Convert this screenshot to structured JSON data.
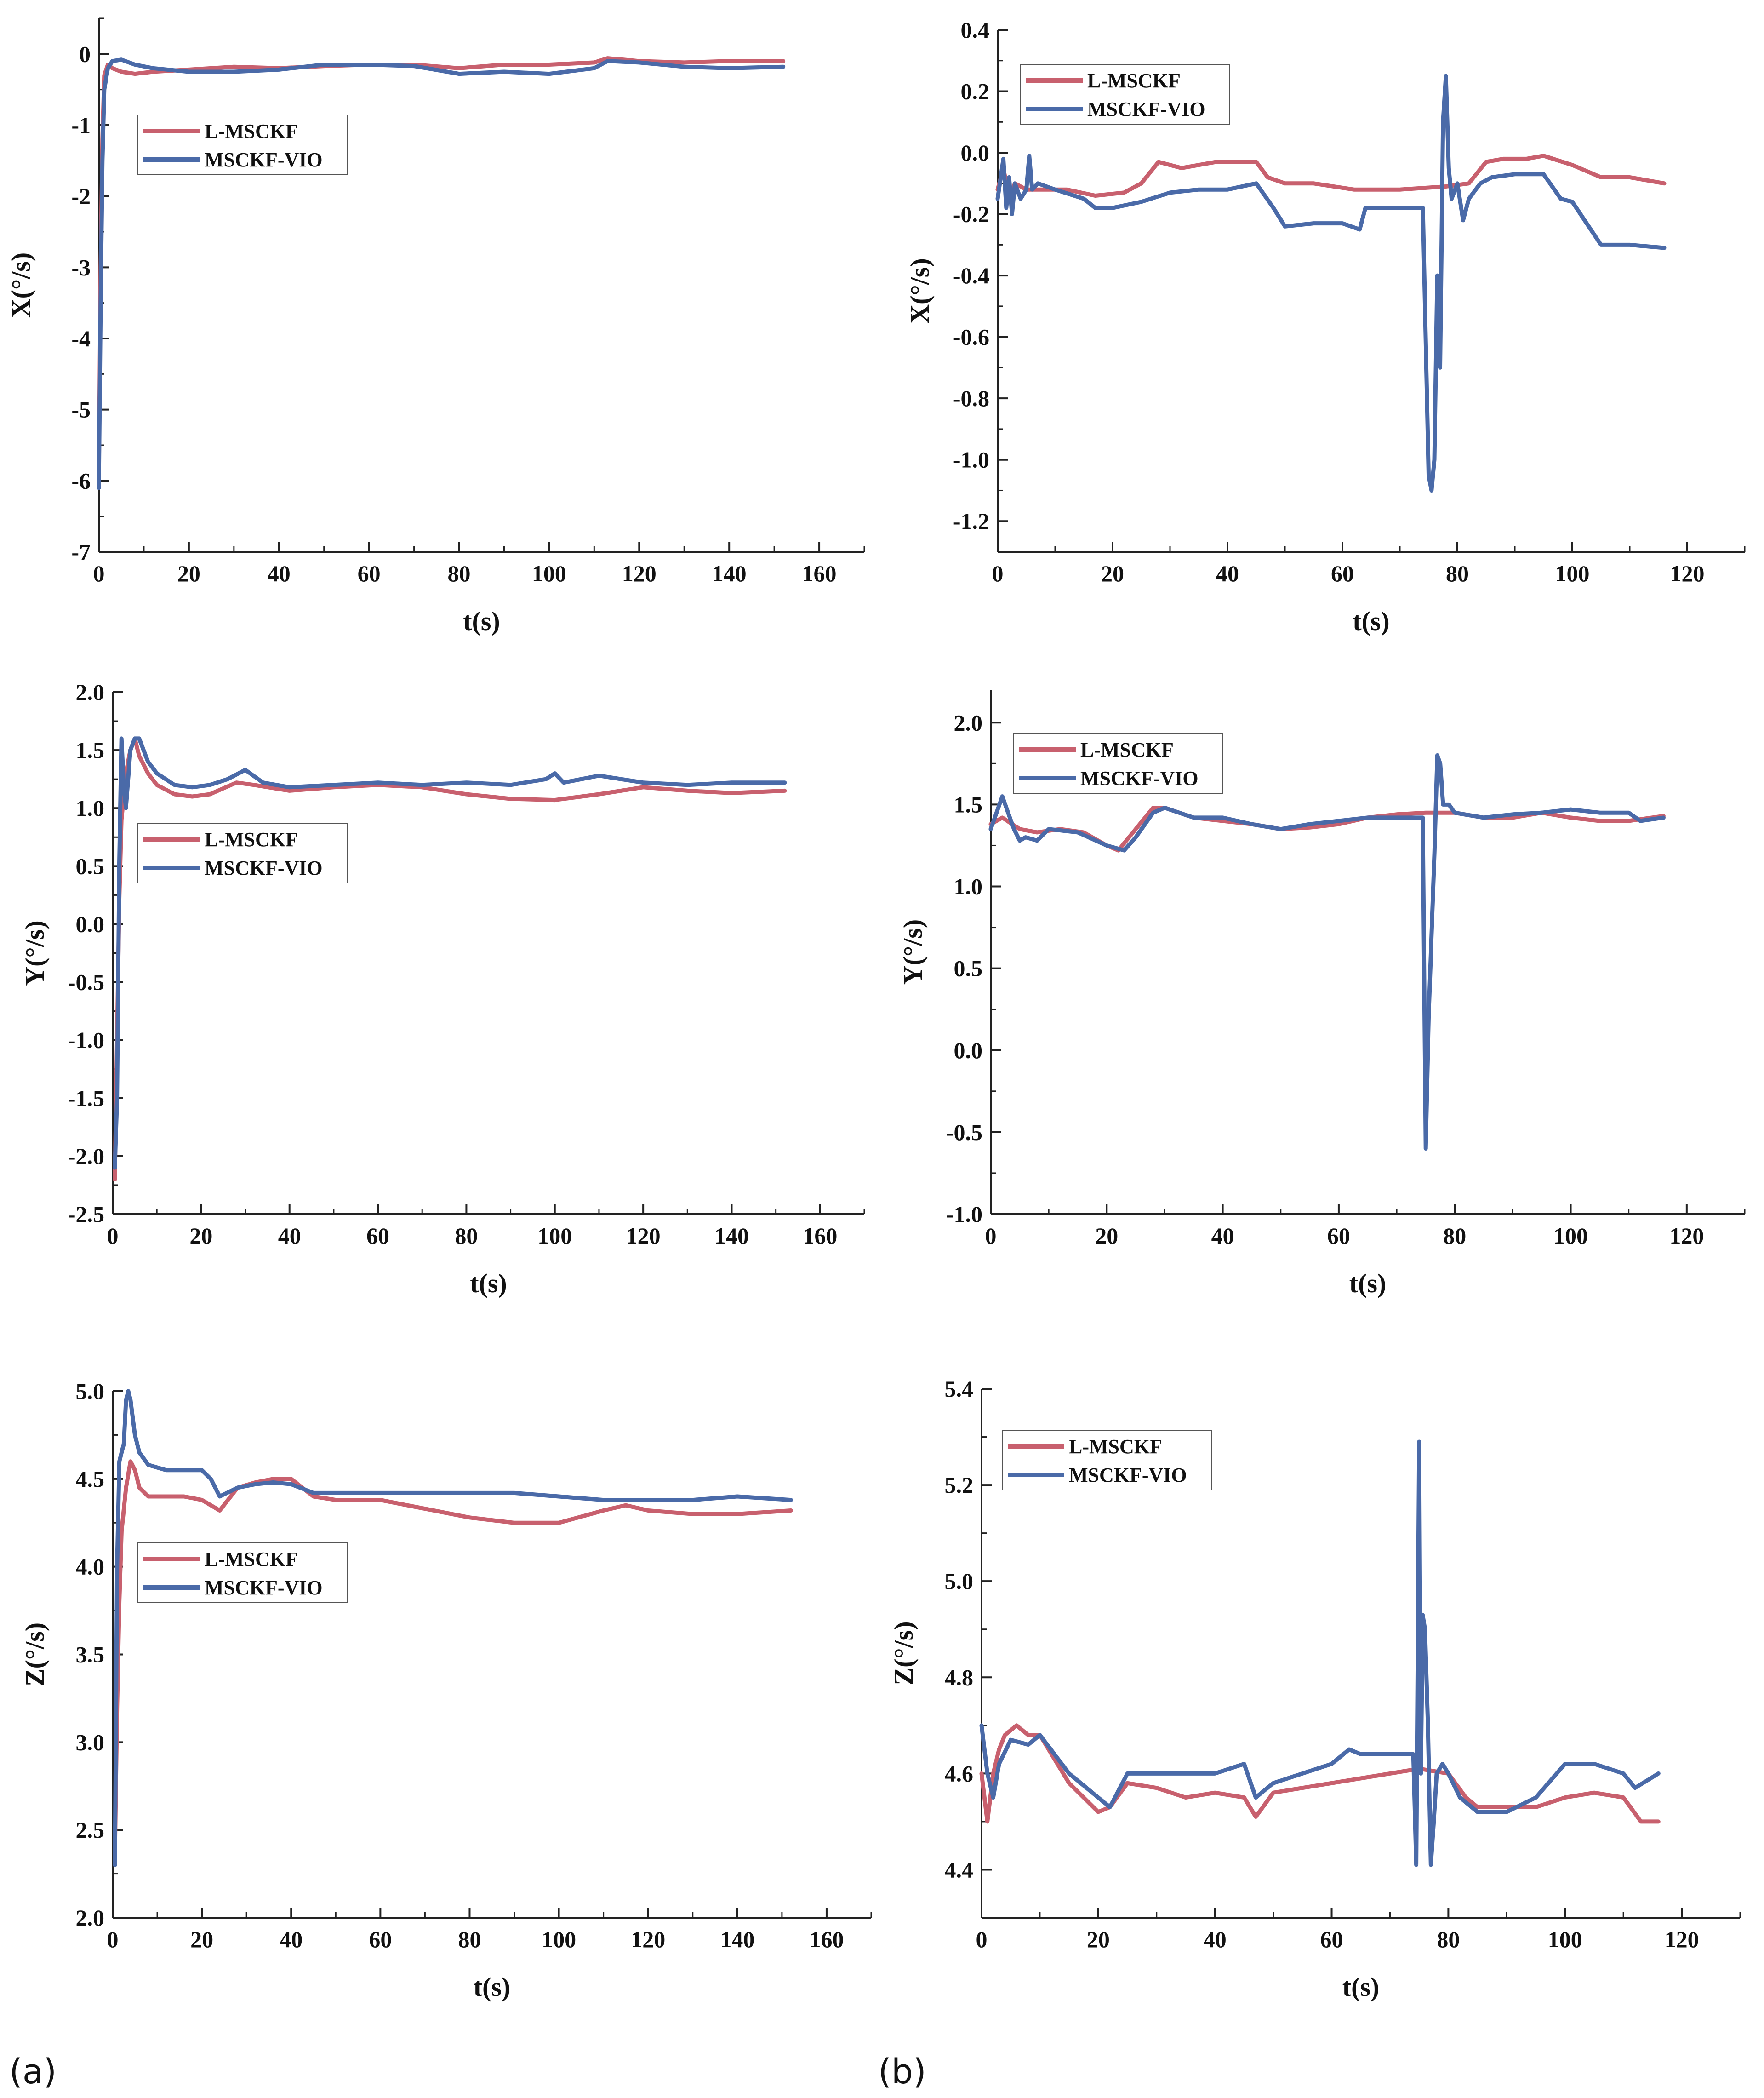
{
  "figure": {
    "panel_labels": [
      "(a)",
      "(b)"
    ]
  },
  "chart_data": [
    {
      "id": "a-x",
      "type": "line",
      "xlabel": "t(s)",
      "ylabel": "X(°/s)",
      "xlim": [
        0,
        170
      ],
      "ylim": [
        -7,
        0.5
      ],
      "xticks": [
        0,
        20,
        40,
        60,
        80,
        100,
        120,
        140,
        160
      ],
      "yticks": [
        -7,
        -6,
        -5,
        -4,
        -3,
        -2,
        -1,
        0
      ],
      "yticklabels": [
        "-7",
        "-6",
        "-5",
        "-4",
        "-3",
        "-2",
        "-1",
        "0"
      ],
      "legend": [
        "L-MSCKF",
        "MSCKF-VIO"
      ],
      "series": [
        {
          "name": "L-MSCKF",
          "color": "#c8606e",
          "x": [
            0,
            0.4,
            0.8,
            1.2,
            2,
            3,
            5,
            8,
            12,
            20,
            30,
            40,
            50,
            60,
            70,
            80,
            90,
            100,
            110,
            113,
            120,
            130,
            140,
            152
          ],
          "y": [
            -6.0,
            -3.0,
            -1.2,
            -0.3,
            -0.15,
            -0.2,
            -0.25,
            -0.28,
            -0.25,
            -0.22,
            -0.18,
            -0.2,
            -0.17,
            -0.15,
            -0.15,
            -0.2,
            -0.15,
            -0.15,
            -0.12,
            -0.06,
            -0.1,
            -0.12,
            -0.1,
            -0.1
          ]
        },
        {
          "name": "MSCKF-VIO",
          "color": "#4a6aa8",
          "x": [
            0,
            0.4,
            0.8,
            1.2,
            2,
            3,
            5,
            8,
            12,
            20,
            30,
            40,
            50,
            60,
            70,
            80,
            90,
            100,
            110,
            113,
            120,
            130,
            140,
            152
          ],
          "y": [
            -6.1,
            -3.5,
            -1.5,
            -0.5,
            -0.2,
            -0.1,
            -0.08,
            -0.15,
            -0.2,
            -0.25,
            -0.25,
            -0.22,
            -0.15,
            -0.15,
            -0.17,
            -0.28,
            -0.25,
            -0.28,
            -0.2,
            -0.1,
            -0.12,
            -0.18,
            -0.2,
            -0.18
          ]
        }
      ]
    },
    {
      "id": "b-x",
      "type": "line",
      "xlabel": "t(s)",
      "ylabel": "X(°/s)",
      "xlim": [
        0,
        130
      ],
      "ylim": [
        -1.3,
        0.4
      ],
      "xticks": [
        0,
        20,
        40,
        60,
        80,
        100,
        120
      ],
      "yticks": [
        -1.2,
        -1.0,
        -0.8,
        -0.6,
        -0.4,
        -0.2,
        0.0,
        0.2,
        0.4
      ],
      "yticklabels": [
        "-1.2",
        "-1.0",
        "-0.8",
        "-0.6",
        "-0.4",
        "-0.2",
        "0.0",
        "0.2",
        "0.4"
      ],
      "legend": [
        "L-MSCKF",
        "MSCKF-VIO"
      ],
      "series": [
        {
          "name": "L-MSCKF",
          "color": "#c8606e",
          "x": [
            0,
            1,
            2,
            3,
            5,
            8,
            12,
            17,
            22,
            25,
            28,
            32,
            38,
            45,
            47,
            50,
            55,
            62,
            70,
            78,
            82,
            85,
            88,
            92,
            95,
            100,
            105,
            110,
            116
          ],
          "y": [
            -0.12,
            -0.05,
            -0.15,
            -0.1,
            -0.12,
            -0.12,
            -0.12,
            -0.14,
            -0.13,
            -0.1,
            -0.03,
            -0.05,
            -0.03,
            -0.03,
            -0.08,
            -0.1,
            -0.1,
            -0.12,
            -0.12,
            -0.11,
            -0.1,
            -0.03,
            -0.02,
            -0.02,
            -0.01,
            -0.04,
            -0.08,
            -0.08,
            -0.1
          ]
        },
        {
          "name": "MSCKF-VIO",
          "color": "#4a6aa8",
          "x": [
            0,
            1,
            1.5,
            2,
            2.5,
            3,
            4,
            5,
            5.5,
            6,
            7,
            10,
            15,
            17,
            20,
            25,
            30,
            35,
            40,
            45,
            48,
            50,
            55,
            60,
            63,
            64,
            70,
            74,
            75,
            75.5,
            76,
            76.5,
            77,
            77.5,
            78,
            78.5,
            79,
            80,
            81,
            82,
            84,
            86,
            90,
            95,
            98,
            100,
            105,
            110,
            116
          ],
          "y": [
            -0.15,
            -0.02,
            -0.18,
            -0.08,
            -0.2,
            -0.1,
            -0.15,
            -0.12,
            -0.01,
            -0.12,
            -0.1,
            -0.12,
            -0.15,
            -0.18,
            -0.18,
            -0.16,
            -0.13,
            -0.12,
            -0.12,
            -0.1,
            -0.18,
            -0.24,
            -0.23,
            -0.23,
            -0.25,
            -0.18,
            -0.18,
            -0.18,
            -1.05,
            -1.1,
            -1.0,
            -0.4,
            -0.7,
            0.1,
            0.25,
            -0.05,
            -0.15,
            -0.1,
            -0.22,
            -0.15,
            -0.1,
            -0.08,
            -0.07,
            -0.07,
            -0.15,
            -0.16,
            -0.3,
            -0.3,
            -0.31
          ]
        }
      ]
    },
    {
      "id": "a-y",
      "type": "line",
      "xlabel": "t(s)",
      "ylabel": "Y(°/s)",
      "xlim": [
        0,
        170
      ],
      "ylim": [
        -2.5,
        2.0
      ],
      "xticks": [
        0,
        20,
        40,
        60,
        80,
        100,
        120,
        140,
        160
      ],
      "yticks": [
        -2.5,
        -2.0,
        -1.5,
        -1.0,
        -0.5,
        0.0,
        0.5,
        1.0,
        1.5,
        2.0
      ],
      "yticklabels": [
        "-2.5",
        "-2.0",
        "-1.5",
        "-1.0",
        "-0.5",
        "0.0",
        "0.5",
        "1.0",
        "1.5",
        "2.0"
      ],
      "legend": [
        "L-MSCKF",
        "MSCKF-VIO"
      ],
      "series": [
        {
          "name": "L-MSCKF",
          "color": "#c8606e",
          "x": [
            0.5,
            1,
            1.5,
            2,
            2.5,
            3,
            4,
            5,
            6,
            8,
            10,
            14,
            18,
            22,
            28,
            32,
            40,
            50,
            60,
            70,
            80,
            90,
            100,
            110,
            120,
            130,
            140,
            152
          ],
          "y": [
            -2.2,
            -1.0,
            0.2,
            0.9,
            1.1,
            1.3,
            1.5,
            1.6,
            1.45,
            1.3,
            1.2,
            1.12,
            1.1,
            1.12,
            1.22,
            1.2,
            1.15,
            1.18,
            1.2,
            1.18,
            1.12,
            1.08,
            1.07,
            1.12,
            1.18,
            1.15,
            1.13,
            1.15
          ]
        },
        {
          "name": "MSCKF-VIO",
          "color": "#4a6aa8",
          "x": [
            0.5,
            1,
            1.5,
            2,
            2.5,
            3,
            4,
            5,
            6,
            8,
            10,
            14,
            18,
            22,
            26,
            30,
            34,
            40,
            50,
            60,
            70,
            80,
            90,
            98,
            100,
            102,
            110,
            120,
            130,
            140,
            152
          ],
          "y": [
            -2.1,
            -1.5,
            0.5,
            1.6,
            1.2,
            1.0,
            1.5,
            1.6,
            1.6,
            1.4,
            1.3,
            1.2,
            1.18,
            1.2,
            1.25,
            1.33,
            1.22,
            1.18,
            1.2,
            1.22,
            1.2,
            1.22,
            1.2,
            1.25,
            1.3,
            1.22,
            1.28,
            1.22,
            1.2,
            1.22,
            1.22
          ]
        }
      ]
    },
    {
      "id": "b-y",
      "type": "line",
      "xlabel": "t(s)",
      "ylabel": "Y(°/s)",
      "xlim": [
        0,
        130
      ],
      "ylim": [
        -1.0,
        2.2
      ],
      "xticks": [
        0,
        20,
        40,
        60,
        80,
        100,
        120
      ],
      "yticks": [
        -1.0,
        -0.5,
        0.0,
        0.5,
        1.0,
        1.5,
        2.0
      ],
      "yticklabels": [
        "-1.0",
        "-0.5",
        "0.0",
        "0.5",
        "1.0",
        "1.5",
        "2.0"
      ],
      "legend": [
        "L-MSCKF",
        "MSCKF-VIO"
      ],
      "series": [
        {
          "name": "L-MSCKF",
          "color": "#c8606e",
          "x": [
            0,
            2,
            5,
            8,
            12,
            16,
            20,
            22,
            25,
            28,
            30,
            35,
            40,
            45,
            50,
            55,
            60,
            65,
            70,
            75,
            80,
            85,
            90,
            95,
            100,
            105,
            110,
            116
          ],
          "y": [
            1.38,
            1.42,
            1.35,
            1.33,
            1.35,
            1.33,
            1.25,
            1.22,
            1.35,
            1.48,
            1.48,
            1.42,
            1.4,
            1.38,
            1.35,
            1.36,
            1.38,
            1.42,
            1.44,
            1.45,
            1.45,
            1.42,
            1.42,
            1.45,
            1.42,
            1.4,
            1.4,
            1.43
          ]
        },
        {
          "name": "MSCKF-VIO",
          "color": "#4a6aa8",
          "x": [
            0,
            1,
            2,
            3,
            4,
            5,
            6,
            8,
            10,
            15,
            20,
            23,
            25,
            28,
            30,
            35,
            40,
            45,
            50,
            55,
            60,
            65,
            70,
            74.5,
            75,
            75.5,
            76,
            76.5,
            77,
            77.5,
            78,
            79,
            80,
            85,
            90,
            95,
            100,
            105,
            110,
            112,
            116
          ],
          "y": [
            1.35,
            1.45,
            1.55,
            1.45,
            1.35,
            1.28,
            1.3,
            1.28,
            1.35,
            1.33,
            1.25,
            1.22,
            1.3,
            1.45,
            1.48,
            1.42,
            1.42,
            1.38,
            1.35,
            1.38,
            1.4,
            1.42,
            1.42,
            1.42,
            -0.6,
            0.2,
            0.7,
            1.2,
            1.8,
            1.75,
            1.5,
            1.5,
            1.45,
            1.42,
            1.44,
            1.45,
            1.47,
            1.45,
            1.45,
            1.4,
            1.42
          ]
        }
      ]
    },
    {
      "id": "a-z",
      "type": "line",
      "xlabel": "t(s)",
      "ylabel": "Z(°/s)",
      "xlim": [
        0,
        170
      ],
      "ylim": [
        2.0,
        5.0
      ],
      "xticks": [
        0,
        20,
        40,
        60,
        80,
        100,
        120,
        140,
        160
      ],
      "yticks": [
        2.0,
        2.5,
        3.0,
        3.5,
        4.0,
        4.5,
        5.0
      ],
      "yticklabels": [
        "2.0",
        "2.5",
        "3.0",
        "3.5",
        "4.0",
        "4.5",
        "5.0"
      ],
      "legend": [
        "L-MSCKF",
        "MSCKF-VIO"
      ],
      "series": [
        {
          "name": "L-MSCKF",
          "color": "#c8606e",
          "x": [
            0.5,
            1,
            1.5,
            2,
            3,
            4,
            5,
            6,
            8,
            12,
            16,
            20,
            24,
            28,
            32,
            36,
            40,
            45,
            50,
            60,
            70,
            80,
            90,
            100,
            110,
            115,
            120,
            130,
            140,
            152
          ],
          "y": [
            2.35,
            3.2,
            3.8,
            4.2,
            4.45,
            4.6,
            4.55,
            4.45,
            4.4,
            4.4,
            4.4,
            4.38,
            4.32,
            4.45,
            4.48,
            4.5,
            4.5,
            4.4,
            4.38,
            4.38,
            4.33,
            4.28,
            4.25,
            4.25,
            4.32,
            4.35,
            4.32,
            4.3,
            4.3,
            4.32
          ]
        },
        {
          "name": "MSCKF-VIO",
          "color": "#4a6aa8",
          "x": [
            0.5,
            1,
            1.5,
            2,
            2.5,
            3,
            3.5,
            4,
            5,
            6,
            8,
            12,
            16,
            20,
            22,
            24,
            28,
            32,
            36,
            40,
            45,
            50,
            60,
            70,
            80,
            90,
            100,
            110,
            120,
            130,
            140,
            152
          ],
          "y": [
            2.3,
            4.0,
            4.6,
            4.65,
            4.7,
            4.95,
            5.0,
            4.95,
            4.75,
            4.65,
            4.58,
            4.55,
            4.55,
            4.55,
            4.5,
            4.4,
            4.45,
            4.47,
            4.48,
            4.47,
            4.42,
            4.42,
            4.42,
            4.42,
            4.42,
            4.42,
            4.4,
            4.38,
            4.38,
            4.38,
            4.4,
            4.38
          ]
        }
      ]
    },
    {
      "id": "b-z",
      "type": "line",
      "xlabel": "t(s)",
      "ylabel": "Z(°/s)",
      "xlim": [
        0,
        130
      ],
      "ylim": [
        4.3,
        5.4
      ],
      "xticks": [
        0,
        20,
        40,
        60,
        80,
        100,
        120
      ],
      "yticks": [
        4.4,
        4.6,
        4.8,
        5.0,
        5.2,
        5.4
      ],
      "yticklabels": [
        "4.4",
        "4.6",
        "4.8",
        "5.0",
        "5.2",
        "5.4"
      ],
      "legend": [
        "L-MSCKF",
        "MSCKF-VIO"
      ],
      "series": [
        {
          "name": "L-MSCKF",
          "color": "#c8606e",
          "x": [
            0,
            1,
            2,
            3,
            4,
            6,
            8,
            10,
            15,
            20,
            22,
            25,
            30,
            35,
            40,
            45,
            47,
            50,
            55,
            60,
            70,
            75,
            80,
            83,
            85,
            90,
            95,
            100,
            105,
            110,
            113,
            116
          ],
          "y": [
            4.6,
            4.5,
            4.6,
            4.65,
            4.68,
            4.7,
            4.68,
            4.68,
            4.58,
            4.52,
            4.53,
            4.58,
            4.57,
            4.55,
            4.56,
            4.55,
            4.51,
            4.56,
            4.57,
            4.58,
            4.6,
            4.61,
            4.6,
            4.55,
            4.53,
            4.53,
            4.53,
            4.55,
            4.56,
            4.55,
            4.5,
            4.5
          ]
        },
        {
          "name": "MSCKF-VIO",
          "color": "#4a6aa8",
          "x": [
            0,
            1,
            2,
            3,
            5,
            8,
            10,
            15,
            20,
            22,
            25,
            30,
            35,
            40,
            45,
            47,
            50,
            55,
            60,
            63,
            65,
            70,
            74,
            74.5,
            75,
            75.3,
            75.6,
            76,
            76.5,
            77,
            77.5,
            78,
            79,
            80,
            82,
            85,
            90,
            95,
            100,
            105,
            110,
            112,
            116
          ],
          "y": [
            4.7,
            4.6,
            4.55,
            4.62,
            4.67,
            4.66,
            4.68,
            4.6,
            4.55,
            4.53,
            4.6,
            4.6,
            4.6,
            4.6,
            4.62,
            4.55,
            4.58,
            4.6,
            4.62,
            4.65,
            4.64,
            4.64,
            4.64,
            4.41,
            5.29,
            4.6,
            4.93,
            4.9,
            4.7,
            4.41,
            4.5,
            4.6,
            4.62,
            4.6,
            4.55,
            4.52,
            4.52,
            4.55,
            4.62,
            4.62,
            4.6,
            4.57,
            4.6
          ]
        }
      ]
    }
  ]
}
